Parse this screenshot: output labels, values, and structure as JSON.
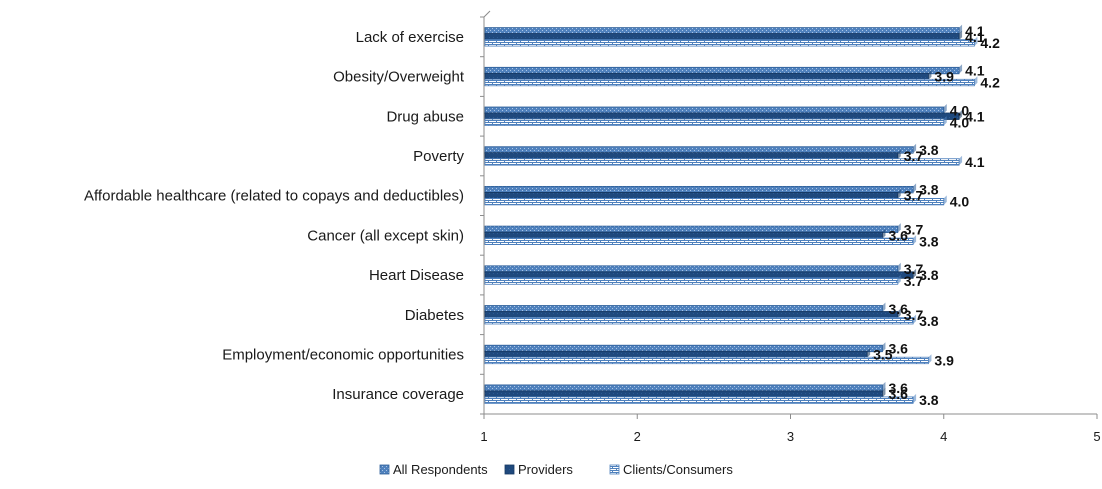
{
  "chart_data": {
    "type": "bar",
    "orientation": "horizontal",
    "categories": [
      "Lack of exercise",
      "Obesity/Overweight",
      "Drug abuse",
      "Poverty",
      "Affordable healthcare (related to copays and deductibles)",
      "Cancer (all except skin)",
      "Heart Disease",
      "Diabetes",
      "Employment/economic opportunities",
      "Insurance coverage"
    ],
    "series": [
      {
        "name": "All Respondents",
        "values": [
          4.1,
          4.1,
          4.0,
          3.8,
          3.8,
          3.7,
          3.7,
          3.6,
          3.6,
          3.6
        ],
        "labels": [
          "4.1",
          "4.1",
          "4.0",
          "3.8",
          "3.8",
          "3.7",
          "3.7",
          "3.6",
          "3.6",
          "3.6"
        ],
        "color": "#4f81bd"
      },
      {
        "name": "Providers",
        "values": [
          4.1,
          3.9,
          4.1,
          3.7,
          3.7,
          3.6,
          3.8,
          3.7,
          3.5,
          3.6
        ],
        "labels": [
          "4.1",
          "3.9",
          "4.1",
          "3.7",
          "3.7",
          "3.6",
          "3.8",
          "3.7",
          "3.5",
          "3.6"
        ],
        "color": "#1f497d"
      },
      {
        "name": "Clients/Consumers",
        "values": [
          4.2,
          4.2,
          4.0,
          4.1,
          4.0,
          3.8,
          3.7,
          3.8,
          3.9,
          3.8
        ],
        "labels": [
          "4.2",
          "4.2",
          "4.0",
          "4.1",
          "4.0",
          "3.8",
          "3.7",
          "3.8",
          "3.9",
          "3.8"
        ],
        "color": "#8eb4e3"
      }
    ],
    "xlim": [
      1,
      5
    ],
    "xticks": [
      "1",
      "2",
      "3",
      "4",
      "5"
    ],
    "grid": false,
    "legend_position": "bottom",
    "title": "",
    "xlabel": "",
    "ylabel": ""
  }
}
